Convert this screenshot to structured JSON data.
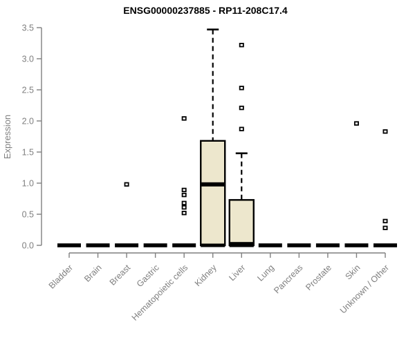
{
  "chart_data": {
    "type": "boxplot",
    "title": "ENSG00000237885 - RP11-208C17.4",
    "xlabel": "",
    "ylabel": "Expression",
    "ylim": [
      0,
      3.5
    ],
    "ytick_labels": [
      "0.0",
      "0.5",
      "1.0",
      "1.5",
      "2.0",
      "2.5",
      "3.0",
      "3.5"
    ],
    "yticks": [
      0,
      0.5,
      1,
      1.5,
      2,
      2.5,
      3,
      3.5
    ],
    "grid": false,
    "legend": false,
    "categories": [
      "Bladder",
      "Brain",
      "Breast",
      "Gastric",
      "Hematopoietic cells",
      "Kidney",
      "Liver",
      "Lung",
      "Pancreas",
      "Prostate",
      "Skin",
      "Unknown / Other"
    ],
    "boxes": [
      {
        "category": "Bladder",
        "lo": 0,
        "q1": 0,
        "median": 0,
        "q3": 0,
        "hi": 0,
        "outliers": []
      },
      {
        "category": "Brain",
        "lo": 0,
        "q1": 0,
        "median": 0,
        "q3": 0,
        "hi": 0,
        "outliers": []
      },
      {
        "category": "Breast",
        "lo": 0,
        "q1": 0,
        "median": 0,
        "q3": 0,
        "hi": 0,
        "outliers": [
          0.98
        ]
      },
      {
        "category": "Gastric",
        "lo": 0,
        "q1": 0,
        "median": 0,
        "q3": 0,
        "hi": 0,
        "outliers": []
      },
      {
        "category": "Hematopoietic cells",
        "lo": 0,
        "q1": 0,
        "median": 0,
        "q3": 0,
        "hi": 0,
        "outliers": [
          2.04,
          0.89,
          0.81,
          0.68,
          0.61,
          0.52
        ]
      },
      {
        "category": "Kidney",
        "lo": 0,
        "q1": 0,
        "median": 0.98,
        "q3": 1.68,
        "hi": 3.47,
        "outliers": []
      },
      {
        "category": "Liver",
        "lo": 0,
        "q1": 0,
        "median": 0.02,
        "q3": 0.73,
        "hi": 1.48,
        "outliers": [
          3.22,
          2.53,
          2.21,
          1.87
        ]
      },
      {
        "category": "Lung",
        "lo": 0,
        "q1": 0,
        "median": 0,
        "q3": 0,
        "hi": 0,
        "outliers": []
      },
      {
        "category": "Pancreas",
        "lo": 0,
        "q1": 0,
        "median": 0,
        "q3": 0,
        "hi": 0,
        "outliers": []
      },
      {
        "category": "Prostate",
        "lo": 0,
        "q1": 0,
        "median": 0,
        "q3": 0,
        "hi": 0,
        "outliers": []
      },
      {
        "category": "Skin",
        "lo": 0,
        "q1": 0,
        "median": 0,
        "q3": 0,
        "hi": 0,
        "outliers": [
          1.96
        ]
      },
      {
        "category": "Unknown / Other",
        "lo": 0,
        "q1": 0,
        "median": 0,
        "q3": 0,
        "hi": 0,
        "outliers": [
          1.83,
          0.39,
          0.28
        ]
      }
    ],
    "colors": {
      "box_fill": "#EDE7CD",
      "box_border": "#000000",
      "median": "#000000",
      "whisker": "#000000",
      "outlier": "#000000",
      "axis": "#7f7f7f",
      "tick_label": "#7f7f7f",
      "title": "#000000",
      "background": "#ffffff"
    }
  }
}
